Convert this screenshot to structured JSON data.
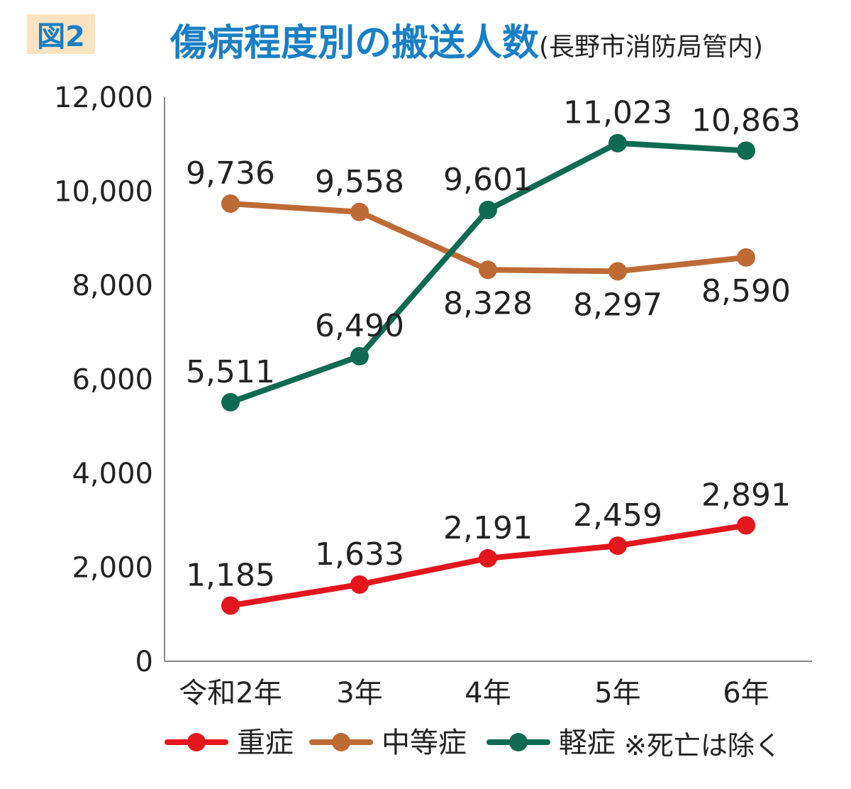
{
  "header": {
    "figure_label": "図2",
    "title": "傷病程度別の搬送人数",
    "subtitle": "(長野市消防局管内)"
  },
  "note": "※死亡は除く",
  "colors": {
    "title": "#1a7fc4",
    "badge_bg": "#fbe3c0",
    "severe": "#e3151d",
    "moderate": "#bd6a35",
    "mild": "#0f6a52",
    "axis": "#888888"
  },
  "chart_data": {
    "type": "line",
    "categories": [
      "令和2年",
      "3年",
      "4年",
      "5年",
      "6年"
    ],
    "ylim": [
      0,
      12000
    ],
    "yticks": [
      "0",
      "2,000",
      "4,000",
      "6,000",
      "8,000",
      "10,000",
      "12,000"
    ],
    "ytick_values": [
      0,
      2000,
      4000,
      6000,
      8000,
      10000,
      12000
    ],
    "grid": false,
    "legend_position": "bottom",
    "series": [
      {
        "key": "severe",
        "name": "重症",
        "values": [
          1185,
          1633,
          2191,
          2459,
          2891
        ],
        "labels": [
          "1,185",
          "1,633",
          "2,191",
          "2,459",
          "2,891"
        ],
        "label_side": "above"
      },
      {
        "key": "moderate",
        "name": "中等症",
        "values": [
          9736,
          9558,
          8328,
          8297,
          8590
        ],
        "labels": [
          "9,736",
          "9,558",
          "8,328",
          "8,297",
          "8,590"
        ],
        "label_side": [
          "above",
          "above",
          "below",
          "below",
          "below"
        ]
      },
      {
        "key": "mild",
        "name": "軽症",
        "values": [
          5511,
          6490,
          9601,
          11023,
          10863
        ],
        "labels": [
          "5,511",
          "6,490",
          "9,601",
          "11,023",
          "10,863"
        ],
        "label_side": "above"
      }
    ]
  }
}
